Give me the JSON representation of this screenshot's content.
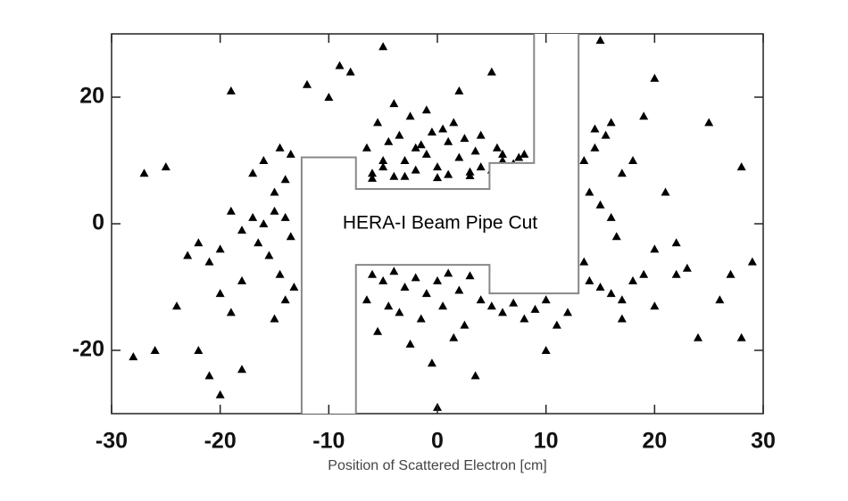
{
  "chart_data": {
    "type": "scatter",
    "xlabel": "Position of Scattered Electron [cm]",
    "annotation": "HERA-I Beam Pipe Cut",
    "color": "#000000",
    "xlim": [
      -30,
      30
    ],
    "ylim": [
      -30,
      30
    ],
    "xticks": [
      -30,
      -20,
      -10,
      0,
      10,
      20,
      30
    ],
    "yticks": [
      -20,
      0,
      20
    ],
    "cut": {
      "color": "#888888",
      "x": [
        -12.5,
        -12.5,
        -7.5,
        -7.5,
        4.8,
        4.8,
        8.9,
        8.9,
        null,
        13,
        13,
        4.8,
        4.8,
        -7.5,
        -7.5
      ],
      "y": [
        -30,
        10.5,
        10.5,
        5.5,
        5.5,
        9.6,
        9.6,
        30,
        null,
        30,
        -11,
        -11,
        -6.5,
        -6.5,
        -30
      ]
    },
    "x": [
      -6,
      -5,
      -4,
      -3,
      -2,
      -1,
      0,
      1,
      2,
      3,
      -6.5,
      -4.5,
      -3.5,
      -1.5,
      0.5,
      2.5,
      4,
      5,
      6,
      7,
      -5.5,
      -2.5,
      -0.5,
      1.5,
      3.5,
      5.5,
      7.5,
      -4,
      -1,
      2,
      -6,
      -3,
      0,
      3,
      6,
      -5,
      -2,
      1,
      4,
      8,
      -6,
      -5,
      -4,
      -3,
      -2,
      -1,
      0,
      1,
      2,
      3,
      -6.5,
      -4.5,
      -3.5,
      -1.5,
      0.5,
      2.5,
      4,
      -5.5,
      -2.5,
      1.5,
      5,
      6,
      7,
      8,
      9,
      10,
      11,
      12,
      -0.5,
      3.5,
      -15,
      -14,
      -13.5,
      -16,
      -15.5,
      -14.5,
      -13.2,
      -16.5,
      -14,
      -15,
      -17,
      -18,
      -19,
      -20,
      -21,
      -22,
      -15,
      -14,
      -17,
      -16,
      -13.5,
      -14.5,
      -18,
      -20,
      -19,
      14,
      15,
      16,
      17,
      18,
      14.5,
      15.5,
      16.5,
      13.5,
      19,
      20,
      14,
      15,
      16,
      17,
      18,
      13.5,
      14.5,
      19,
      21,
      22,
      23,
      20,
      17,
      16,
      -27,
      -25,
      -24,
      -26,
      -23,
      -22,
      -21,
      -20,
      -19,
      -18,
      -12,
      -10,
      -9,
      -8,
      -5,
      0,
      5,
      10,
      12,
      15,
      20,
      24,
      26,
      27,
      28,
      29,
      28,
      25,
      22,
      -28
    ],
    "y": [
      8,
      9,
      7.5,
      10,
      8.5,
      11,
      9,
      7.8,
      10.5,
      8.2,
      12,
      13,
      14,
      12.5,
      15,
      13.5,
      9,
      8.5,
      10,
      9.5,
      16,
      17,
      14.5,
      16,
      11.5,
      12,
      10.5,
      19,
      18,
      21,
      7.2,
      7.5,
      7.3,
      7.6,
      11,
      10,
      12,
      13,
      14,
      11,
      -8,
      -9,
      -7.5,
      -10,
      -8.5,
      -11,
      -9,
      -7.8,
      -10.5,
      -8.2,
      -12,
      -13,
      -14,
      -15,
      -13,
      -16,
      -12,
      -17,
      -19,
      -18,
      -13,
      -14,
      -12.5,
      -15,
      -13.5,
      -12,
      -16,
      -14,
      -22,
      -24,
      2,
      1,
      -2,
      0,
      -5,
      -8,
      -10,
      -3,
      -12,
      -15,
      1,
      -1,
      2,
      -4,
      -6,
      -3,
      5,
      7,
      8,
      10,
      11,
      12,
      -9,
      -11,
      -14,
      5,
      3,
      1,
      8,
      10,
      12,
      14,
      -2,
      -6,
      -8,
      -4,
      -9,
      -10,
      -11,
      -12,
      -9,
      10,
      15,
      17,
      5,
      -8,
      -7,
      -13,
      -15,
      16,
      8,
      9,
      -13,
      -20,
      -5,
      -20,
      -24,
      -27,
      21,
      -23,
      22,
      20,
      25,
      24,
      28,
      -29,
      24,
      -20,
      27,
      29,
      23,
      -18,
      -12,
      -8,
      9,
      -6,
      -18,
      16,
      -3,
      -21
    ]
  }
}
